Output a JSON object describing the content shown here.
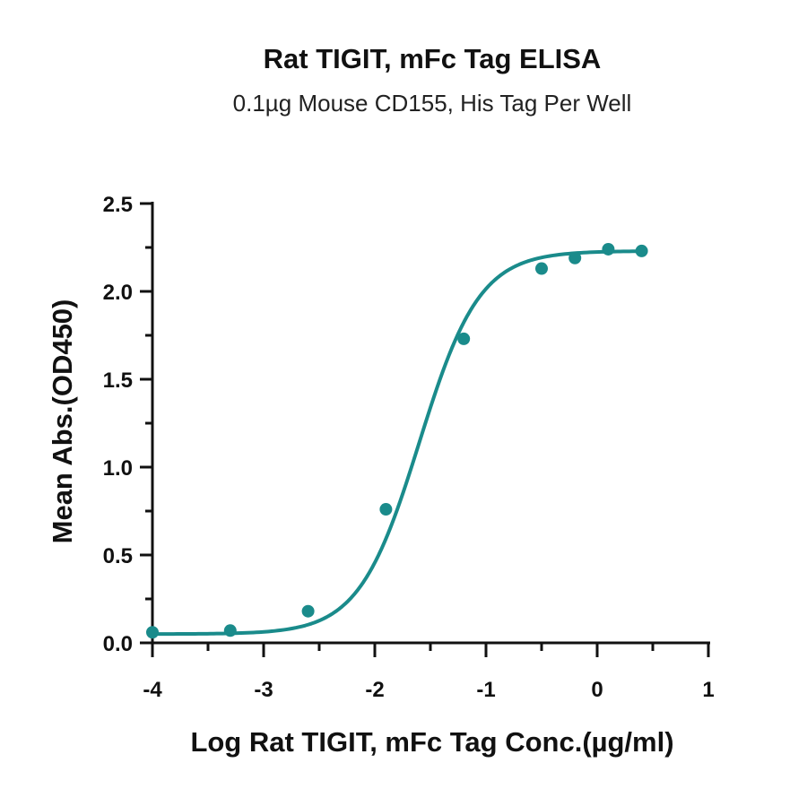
{
  "chart_data": {
    "type": "scatter",
    "title": "Rat TIGIT, mFc Tag ELISA",
    "subtitle": "0.1µg Mouse CD155, His Tag Per Well",
    "xlabel": "Log Rat TIGIT, mFc Tag Conc.(µg/ml)",
    "ylabel": "Mean Abs.(OD450)",
    "xlim": [
      -4,
      1
    ],
    "ylim": [
      0,
      2.5
    ],
    "x_ticks": [
      -4,
      -3,
      -2,
      -1,
      0,
      1
    ],
    "y_ticks": [
      0.0,
      0.5,
      1.0,
      1.5,
      2.0,
      2.5
    ],
    "x_tick_labels": [
      "-4",
      "-3",
      "-2",
      "-1",
      "0",
      "1"
    ],
    "y_tick_labels": [
      "0.0",
      "0.5",
      "1.0",
      "1.5",
      "2.0",
      "2.5"
    ],
    "grid": false,
    "series": [
      {
        "color": "#1a8b8b",
        "x": [
          -4.0,
          -3.3,
          -2.6,
          -1.9,
          -1.2,
          -0.5,
          -0.2,
          0.1,
          0.4
        ],
        "y": [
          0.06,
          0.07,
          0.18,
          0.76,
          1.73,
          2.13,
          2.19,
          2.24,
          2.23
        ],
        "fit": {
          "type": "four-parameter-logistic",
          "bottom": 0.05,
          "top": 2.23,
          "log_ec50": -1.6,
          "hill_slope": 1.6
        }
      }
    ]
  }
}
